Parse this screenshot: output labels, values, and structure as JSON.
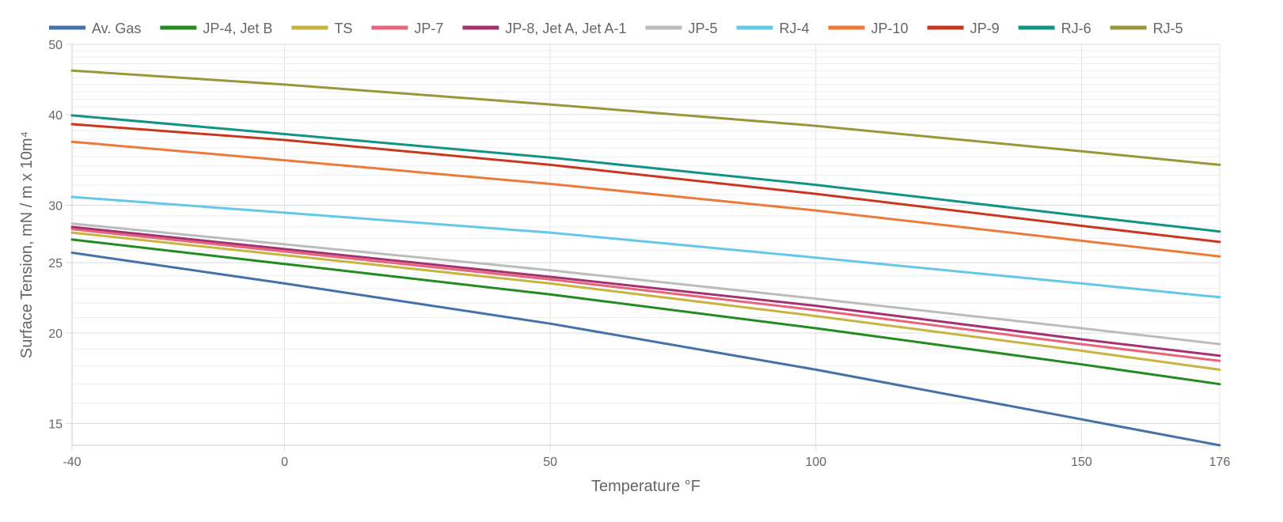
{
  "chart_data": {
    "type": "line",
    "xlabel": "Temperature °F",
    "ylabel": "Surface Tension, mN / m x 10m⁴",
    "xlim": [
      -40,
      176
    ],
    "ylim": [
      14,
      50
    ],
    "y_scale": "log",
    "x_ticks": [
      -40,
      0,
      50,
      100,
      150,
      176
    ],
    "y_ticks": [
      15,
      20,
      25,
      30,
      40,
      50
    ],
    "y_minor_gridlines": [
      16,
      17,
      18,
      19,
      21,
      22,
      23,
      24,
      26,
      27,
      28,
      29,
      31,
      32,
      33,
      34,
      35,
      36,
      37,
      38,
      39,
      41,
      42,
      43,
      44,
      45,
      46,
      47,
      48,
      49
    ],
    "x_gridlines": [
      -40,
      0,
      50,
      100,
      150,
      176
    ],
    "grid": true,
    "legend_position": "top",
    "series": [
      {
        "name": "Av. Gas",
        "color": "#4472a8",
        "x": [
          -40,
          0,
          50,
          100,
          150,
          176
        ],
        "y": [
          25.8,
          23.4,
          20.6,
          17.8,
          15.2,
          14.0
        ]
      },
      {
        "name": "JP-4, Jet B",
        "color": "#228b22",
        "x": [
          -40,
          0,
          50,
          100,
          150,
          176
        ],
        "y": [
          26.9,
          24.9,
          22.6,
          20.3,
          18.1,
          17.0
        ]
      },
      {
        "name": "TS",
        "color": "#c8b440",
        "x": [
          -40,
          0,
          50,
          100,
          150,
          176
        ],
        "y": [
          27.5,
          25.6,
          23.4,
          21.1,
          18.9,
          17.8
        ]
      },
      {
        "name": "JP-7",
        "color": "#e8647a",
        "x": [
          -40,
          0,
          50,
          100,
          150,
          176
        ],
        "y": [
          27.8,
          25.9,
          23.7,
          21.5,
          19.3,
          18.3
        ]
      },
      {
        "name": "JP-8, Jet A, Jet A-1",
        "color": "#a43272",
        "x": [
          -40,
          0,
          50,
          100,
          150,
          176
        ],
        "y": [
          28.0,
          26.1,
          23.9,
          21.8,
          19.6,
          18.6
        ]
      },
      {
        "name": "JP-5",
        "color": "#bcbcbc",
        "x": [
          -40,
          0,
          50,
          100,
          150,
          176
        ],
        "y": [
          28.3,
          26.5,
          24.4,
          22.3,
          20.3,
          19.3
        ]
      },
      {
        "name": "RJ-4",
        "color": "#66c8e8",
        "x": [
          -40,
          0,
          50,
          100,
          150,
          176
        ],
        "y": [
          30.8,
          29.3,
          27.5,
          25.4,
          23.4,
          22.4
        ]
      },
      {
        "name": "JP-10",
        "color": "#ec7a3a",
        "x": [
          -40,
          0,
          50,
          100,
          150,
          176
        ],
        "y": [
          36.7,
          34.6,
          32.1,
          29.5,
          26.8,
          25.5
        ]
      },
      {
        "name": "JP-9",
        "color": "#c83820",
        "x": [
          -40,
          0,
          50,
          100,
          150,
          176
        ],
        "y": [
          38.8,
          36.9,
          34.1,
          31.1,
          28.1,
          26.7
        ]
      },
      {
        "name": "RJ-6",
        "color": "#119484",
        "x": [
          -40,
          0,
          50,
          100,
          150,
          176
        ],
        "y": [
          39.9,
          37.6,
          34.9,
          32.0,
          29.0,
          27.6
        ]
      },
      {
        "name": "RJ-5",
        "color": "#989838",
        "x": [
          -40,
          0,
          50,
          100,
          150,
          176
        ],
        "y": [
          46.0,
          44.0,
          41.3,
          38.6,
          35.6,
          34.1
        ]
      }
    ]
  }
}
